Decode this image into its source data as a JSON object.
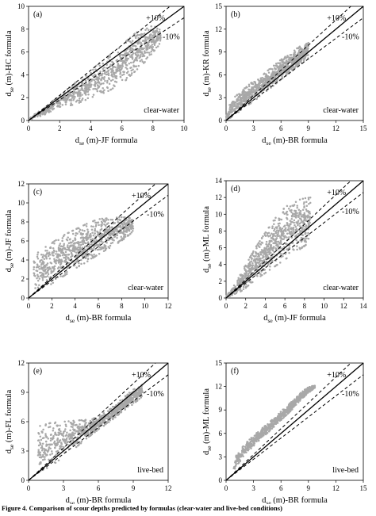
{
  "chart_data": [
    {
      "type": "scatter",
      "panel_label": "(a)",
      "xlabel_sub": "se",
      "xlabel_main": "d",
      "xlabel_rest": " (m)-JF formula",
      "ylabel_main": "d",
      "ylabel_sub": "se",
      "ylabel_rest": " (m)-HC formula",
      "xlim": [
        0,
        10
      ],
      "ylim": [
        0,
        10
      ],
      "xticks": [
        "0",
        "2",
        "4",
        "6",
        "8",
        "10"
      ],
      "yticks": [
        "0",
        "2",
        "4",
        "6",
        "8",
        "10"
      ],
      "annotations": {
        "plus": "+10%",
        "minus": "-10%",
        "condition": "clear-water"
      },
      "cloud": {
        "xmax": 8.5,
        "upper": [
          [
            0,
            0.2
          ],
          [
            1,
            1.1
          ],
          [
            2,
            2.2
          ],
          [
            3,
            3.3
          ],
          [
            4,
            4.4
          ],
          [
            5,
            5.5
          ],
          [
            6,
            6.6
          ],
          [
            7,
            7.8
          ],
          [
            8,
            8.3
          ],
          [
            8.5,
            8.0
          ]
        ],
        "lower": [
          [
            0,
            0
          ],
          [
            1,
            0.5
          ],
          [
            2,
            1.2
          ],
          [
            3,
            1.4
          ],
          [
            4,
            2.0
          ],
          [
            5,
            2.5
          ],
          [
            6,
            3.2
          ],
          [
            7,
            4.5
          ],
          [
            8,
            5.8
          ],
          [
            8.5,
            6.8
          ]
        ]
      }
    },
    {
      "type": "scatter",
      "panel_label": "(b)",
      "xlabel_sub": "se",
      "xlabel_main": "d",
      "xlabel_rest": " (m)-BR formula",
      "ylabel_main": "d",
      "ylabel_sub": "se",
      "ylabel_rest": " (m)-KR formula",
      "xlim": [
        0,
        15
      ],
      "ylim": [
        0,
        15
      ],
      "xticks": [
        "0",
        "3",
        "6",
        "9",
        "12",
        "15"
      ],
      "yticks": [
        "0",
        "3",
        "6",
        "9",
        "12",
        "15"
      ],
      "annotations": {
        "plus": "+10%",
        "minus": "-10%",
        "condition": "clear-water"
      },
      "cloud": {
        "xmax": 9,
        "upper": [
          [
            0,
            0.5
          ],
          [
            0.5,
            2.5
          ],
          [
            1,
            3.2
          ],
          [
            2,
            4.2
          ],
          [
            3,
            5.2
          ],
          [
            4,
            6.0
          ],
          [
            5,
            7.0
          ],
          [
            6,
            8.0
          ],
          [
            7,
            8.8
          ],
          [
            8,
            9.7
          ],
          [
            9,
            10.2
          ]
        ],
        "lower": [
          [
            0,
            0
          ],
          [
            1,
            0.8
          ],
          [
            2,
            1.7
          ],
          [
            3,
            2.5
          ],
          [
            4,
            3.5
          ],
          [
            5,
            4.4
          ],
          [
            6,
            5.4
          ],
          [
            7,
            6.3
          ],
          [
            8,
            7.3
          ],
          [
            9,
            8.2
          ]
        ]
      }
    },
    {
      "type": "scatter",
      "panel_label": "(c)",
      "xlabel_sub": "se",
      "xlabel_main": "d",
      "xlabel_rest": " (m)-BR formula",
      "ylabel_main": "d",
      "ylabel_sub": "se",
      "ylabel_rest": " (m)-JF formula",
      "xlim": [
        0,
        12
      ],
      "ylim": [
        0,
        12
      ],
      "xticks": [
        "0",
        "2",
        "4",
        "6",
        "8",
        "10",
        "12"
      ],
      "yticks": [
        "0",
        "2",
        "4",
        "6",
        "8",
        "10",
        "12"
      ],
      "annotations": {
        "plus": "+10%",
        "minus": "-10%",
        "condition": "clear-water"
      },
      "cloud": {
        "xmax": 9,
        "upper": [
          [
            0.4,
            4.6
          ],
          [
            1,
            5.0
          ],
          [
            2,
            5.8
          ],
          [
            3,
            6.6
          ],
          [
            4,
            7.2
          ],
          [
            5,
            7.8
          ],
          [
            6,
            8.3
          ],
          [
            7,
            8.4
          ],
          [
            8,
            8.5
          ],
          [
            9,
            8.4
          ]
        ],
        "lower": [
          [
            0.4,
            0.6
          ],
          [
            1,
            0.9
          ],
          [
            2,
            1.5
          ],
          [
            3,
            2.3
          ],
          [
            4,
            3.1
          ],
          [
            5,
            3.8
          ],
          [
            6,
            4.6
          ],
          [
            7,
            5.3
          ],
          [
            8,
            6.0
          ],
          [
            9,
            7.0
          ]
        ]
      }
    },
    {
      "type": "scatter",
      "panel_label": "(d)",
      "xlabel_sub": "se",
      "xlabel_main": "d",
      "xlabel_rest": " (m)-JF formula",
      "ylabel_main": "d",
      "ylabel_sub": "se",
      "ylabel_rest": " (m)-ML formula",
      "xlim": [
        0,
        14
      ],
      "ylim": [
        0,
        14
      ],
      "xticks": [
        "0",
        "2",
        "4",
        "6",
        "8",
        "10",
        "12",
        "14"
      ],
      "yticks": [
        "0",
        "2",
        "4",
        "6",
        "8",
        "10",
        "12",
        "14"
      ],
      "annotations": {
        "plus": "+10%",
        "minus": "-10%",
        "condition": "clear-water"
      },
      "cloud": {
        "xmax": 8.6,
        "upper": [
          [
            0,
            0.2
          ],
          [
            1,
            1.8
          ],
          [
            2,
            4.0
          ],
          [
            3,
            6.0
          ],
          [
            4,
            7.8
          ],
          [
            5,
            9.5
          ],
          [
            6,
            10.8
          ],
          [
            7,
            11.6
          ],
          [
            8,
            11.9
          ],
          [
            8.6,
            12.0
          ]
        ],
        "lower": [
          [
            0,
            0
          ],
          [
            1,
            0.4
          ],
          [
            2,
            1.2
          ],
          [
            3,
            2.2
          ],
          [
            4,
            3.0
          ],
          [
            5,
            3.8
          ],
          [
            6,
            4.6
          ],
          [
            7,
            5.4
          ],
          [
            8,
            6.2
          ],
          [
            8.6,
            6.8
          ]
        ]
      }
    },
    {
      "type": "scatter",
      "panel_label": "(e)",
      "xlabel_sub": "se",
      "xlabel_main": "d",
      "xlabel_rest": " (m)-BR formula",
      "ylabel_main": "d",
      "ylabel_sub": "se",
      "ylabel_rest": " (m)-FL formula",
      "xlim": [
        0,
        12
      ],
      "ylim": [
        0,
        12
      ],
      "xticks": [
        "0",
        "3",
        "6",
        "9",
        "12"
      ],
      "yticks": [
        "0",
        "3",
        "6",
        "9",
        "12"
      ],
      "annotations": {
        "plus": "+10%",
        "minus": "-10%",
        "condition": "live-bed"
      },
      "cloud": {
        "xmax": 9.8,
        "upper": [
          [
            0.8,
            5.5
          ],
          [
            2,
            5.9
          ],
          [
            3,
            6.0
          ],
          [
            4,
            6.1
          ],
          [
            5,
            6.2
          ],
          [
            6,
            6.5
          ],
          [
            7,
            7.3
          ],
          [
            8,
            8.3
          ],
          [
            9,
            9.3
          ],
          [
            9.8,
            9.8
          ]
        ],
        "lower": [
          [
            0.8,
            0.8
          ],
          [
            2,
            1.5
          ],
          [
            3,
            2.4
          ],
          [
            4,
            3.3
          ],
          [
            5,
            4.3
          ],
          [
            6,
            5.2
          ],
          [
            7,
            6.0
          ],
          [
            8,
            7.0
          ],
          [
            9,
            7.8
          ],
          [
            9.8,
            8.6
          ]
        ]
      }
    },
    {
      "type": "scatter",
      "panel_label": "(f)",
      "xlabel_sub": "se",
      "xlabel_main": "d",
      "xlabel_rest": " (m)-BR formula",
      "ylabel_main": "d",
      "ylabel_sub": "se",
      "ylabel_rest": " (m)-ML formula",
      "xlim": [
        0,
        15
      ],
      "ylim": [
        0,
        15
      ],
      "xticks": [
        "0",
        "3",
        "6",
        "9",
        "12",
        "15"
      ],
      "yticks": [
        "0",
        "3",
        "6",
        "9",
        "12",
        "15"
      ],
      "annotations": {
        "plus": "+10%",
        "minus": "-10%",
        "condition": "live-bed"
      },
      "cloud": {
        "xmax": 9.7,
        "upper": [
          [
            0.8,
            1.5
          ],
          [
            1,
            3.0
          ],
          [
            2,
            4.6
          ],
          [
            3,
            5.7
          ],
          [
            4,
            6.7
          ],
          [
            5,
            7.7
          ],
          [
            6,
            8.8
          ],
          [
            7,
            9.9
          ],
          [
            8,
            11.0
          ],
          [
            9,
            12.0
          ],
          [
            9.7,
            12.1
          ]
        ],
        "lower": [
          [
            0.8,
            0.8
          ],
          [
            1,
            1.6
          ],
          [
            2,
            3.2
          ],
          [
            3,
            4.4
          ],
          [
            4,
            5.5
          ],
          [
            5,
            6.6
          ],
          [
            6,
            7.7
          ],
          [
            7,
            8.8
          ],
          [
            8,
            10.1
          ],
          [
            9,
            11.2
          ],
          [
            9.7,
            11.8
          ]
        ]
      }
    }
  ],
  "caption": "Figure 4. Comparison of scour depths predicted by formulas (clear-water and live-bed conditions)"
}
